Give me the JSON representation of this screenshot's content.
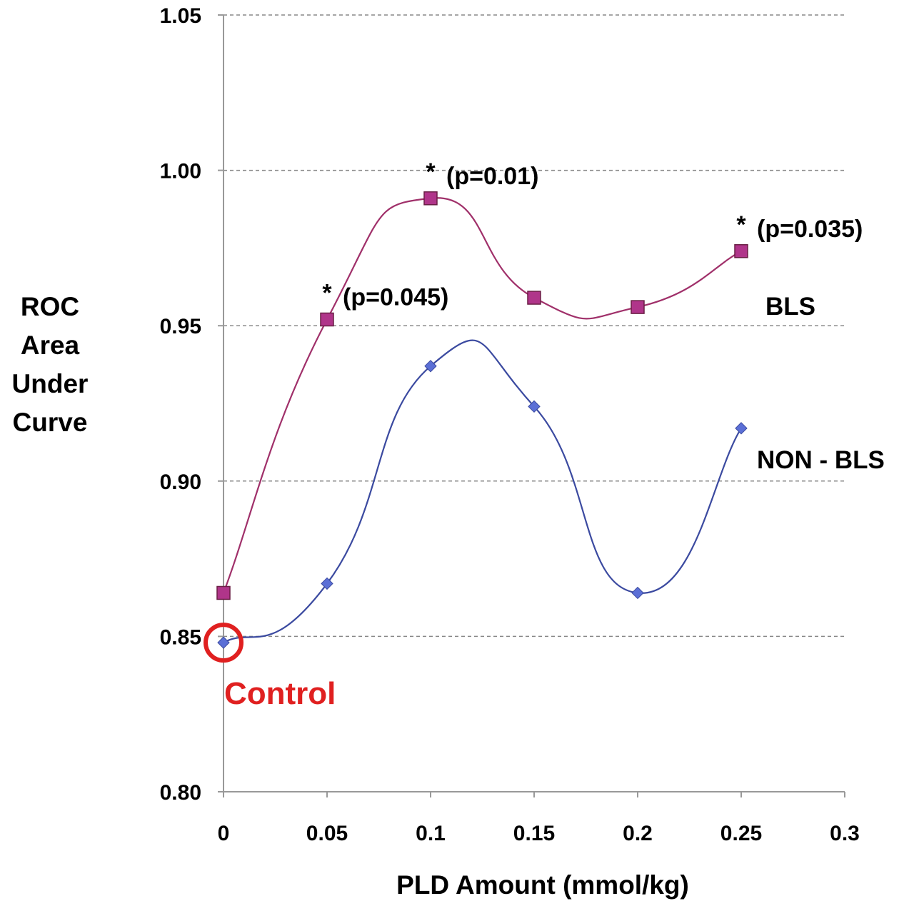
{
  "chart_data": {
    "type": "line",
    "x": [
      0,
      0.05,
      0.1,
      0.15,
      0.2,
      0.25
    ],
    "series": [
      {
        "name": "BLS",
        "values": [
          0.864,
          0.952,
          0.991,
          0.959,
          0.956,
          0.974
        ],
        "color": "#a0306a",
        "marker": "square",
        "marker_color": "#b0358a"
      },
      {
        "name": "NON - BLS",
        "values": [
          0.848,
          0.867,
          0.937,
          0.924,
          0.864,
          0.917
        ],
        "color": "#3b4aa0",
        "marker": "diamond",
        "marker_color": "#5b6fd6"
      }
    ],
    "xlabel": "PLD Amount (mmol/kg)",
    "ylabel_lines": [
      "ROC",
      "Area",
      "Under",
      "Curve"
    ],
    "xlim": [
      0,
      0.3
    ],
    "ylim": [
      0.8,
      1.05
    ],
    "xticks": [
      0,
      0.05,
      0.1,
      0.15,
      0.2,
      0.25,
      0.3
    ],
    "xtick_labels": [
      "0",
      "0.05",
      "0.1",
      "0.15",
      "0.2",
      "0.25",
      "0.3"
    ],
    "yticks": [
      0.8,
      0.85,
      0.9,
      0.95,
      1.0,
      1.05
    ],
    "ytick_labels": [
      "0.80",
      "0.85",
      "0.90",
      "0.95",
      "1.00",
      "1.05"
    ],
    "grid": "horizontal dashed",
    "annotations": [
      {
        "series": "BLS",
        "x": 0.05,
        "star": "*",
        "text": "(p=0.045)"
      },
      {
        "series": "BLS",
        "x": 0.1,
        "star": "*",
        "text": "(p=0.01)"
      },
      {
        "series": "BLS",
        "x": 0.25,
        "star": "*",
        "text": "(p=0.035)"
      }
    ],
    "control": {
      "label": "Control",
      "x": 0,
      "y": 0.848,
      "color": "#e02020"
    },
    "colors": {
      "grid": "#888888",
      "axis": "#999999"
    }
  }
}
